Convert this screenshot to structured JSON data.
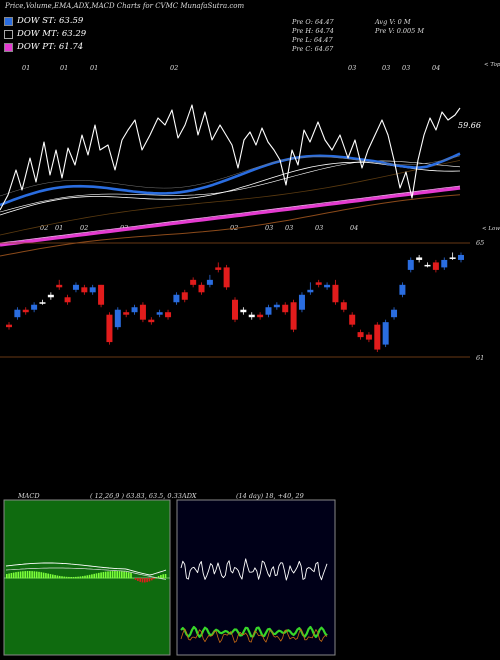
{
  "header": {
    "title": "Price,Volume,EMA,ADX,MACD Charts for CVMC MunafaSutra.com"
  },
  "legend": [
    {
      "label": "DOW ST: 63.59",
      "color": "#2a6de0"
    },
    {
      "label": "DOW MT: 63.29",
      "color": "#000000"
    },
    {
      "label": "DOW PT: 61.74",
      "color": "#e43ad0"
    }
  ],
  "info": {
    "pre_o": "Pre  O: 64.47",
    "pre_h": "Pre  H: 64.74",
    "pre_l": "Pre  L: 64.47",
    "pre_c": "Pre  C: 64.67",
    "avg_v": "Avg V: 0  M",
    "pre_v": "Pre  V: 0.005 M"
  },
  "chart_data": [
    {
      "type": "line",
      "name": "price-ema",
      "price_label": "59.66",
      "top_label": "< Tops",
      "bottom_label": "< Lows",
      "top_date_labels": [
        "01",
        "01",
        "01",
        "02",
        "03",
        "03",
        "03",
        "04"
      ],
      "bottom_date_labels": [
        "02",
        "01",
        "02",
        "02",
        "02",
        "03",
        "03",
        "03",
        "04"
      ],
      "colors": {
        "price": "#ffffff",
        "ema_short": "#2a6de0",
        "ema_mid": "#ffffff",
        "ema_long": "#8b4a1a",
        "ema_pt": "#e43ad0"
      }
    },
    {
      "type": "bar",
      "name": "candles",
      "price_high_label": "65",
      "price_low_label": "61",
      "candles": [
        {
          "o": 61.9,
          "c": 62.0,
          "h": 62.1,
          "l": 61.8,
          "col": "red"
        },
        {
          "o": 62.3,
          "c": 62.6,
          "h": 62.7,
          "l": 62.2,
          "col": "blue"
        },
        {
          "o": 62.6,
          "c": 62.5,
          "h": 62.7,
          "l": 62.4,
          "col": "red"
        },
        {
          "o": 62.6,
          "c": 62.8,
          "h": 62.9,
          "l": 62.5,
          "col": "blue"
        },
        {
          "o": 62.9,
          "c": 62.9,
          "h": 63.0,
          "l": 62.8,
          "col": "white"
        },
        {
          "o": 63.1,
          "c": 63.2,
          "h": 63.3,
          "l": 63.0,
          "col": "white"
        },
        {
          "o": 63.5,
          "c": 63.6,
          "h": 63.8,
          "l": 63.4,
          "col": "red"
        },
        {
          "o": 63.1,
          "c": 62.9,
          "h": 63.2,
          "l": 62.8,
          "col": "red"
        },
        {
          "o": 63.4,
          "c": 63.6,
          "h": 63.7,
          "l": 63.3,
          "col": "blue"
        },
        {
          "o": 63.5,
          "c": 63.3,
          "h": 63.6,
          "l": 63.2,
          "col": "red"
        },
        {
          "o": 63.3,
          "c": 63.5,
          "h": 63.6,
          "l": 63.2,
          "col": "blue"
        },
        {
          "o": 63.6,
          "c": 62.8,
          "h": 63.6,
          "l": 62.7,
          "col": "red"
        },
        {
          "o": 62.4,
          "c": 61.3,
          "h": 62.5,
          "l": 61.2,
          "col": "red"
        },
        {
          "o": 61.9,
          "c": 62.6,
          "h": 62.7,
          "l": 61.8,
          "col": "blue"
        },
        {
          "o": 62.5,
          "c": 62.4,
          "h": 62.6,
          "l": 62.3,
          "col": "red"
        },
        {
          "o": 62.5,
          "c": 62.7,
          "h": 62.8,
          "l": 62.4,
          "col": "blue"
        },
        {
          "o": 62.8,
          "c": 62.2,
          "h": 62.9,
          "l": 62.1,
          "col": "red"
        },
        {
          "o": 62.2,
          "c": 62.1,
          "h": 62.3,
          "l": 62.0,
          "col": "red"
        },
        {
          "o": 62.4,
          "c": 62.5,
          "h": 62.6,
          "l": 62.3,
          "col": "blue"
        },
        {
          "o": 62.5,
          "c": 62.3,
          "h": 62.6,
          "l": 62.2,
          "col": "red"
        },
        {
          "o": 62.9,
          "c": 63.2,
          "h": 63.3,
          "l": 62.8,
          "col": "blue"
        },
        {
          "o": 63.3,
          "c": 63.0,
          "h": 63.4,
          "l": 62.9,
          "col": "red"
        },
        {
          "o": 63.6,
          "c": 63.8,
          "h": 63.9,
          "l": 63.5,
          "col": "red"
        },
        {
          "o": 63.6,
          "c": 63.3,
          "h": 63.7,
          "l": 63.2,
          "col": "red"
        },
        {
          "o": 63.6,
          "c": 63.8,
          "h": 64.0,
          "l": 63.5,
          "col": "blue"
        },
        {
          "o": 64.3,
          "c": 64.2,
          "h": 64.5,
          "l": 64.1,
          "col": "red"
        },
        {
          "o": 64.3,
          "c": 63.5,
          "h": 64.4,
          "l": 63.4,
          "col": "red"
        },
        {
          "o": 63.0,
          "c": 62.2,
          "h": 63.1,
          "l": 62.1,
          "col": "red"
        },
        {
          "o": 62.5,
          "c": 62.6,
          "h": 62.7,
          "l": 62.4,
          "col": "white"
        },
        {
          "o": 62.3,
          "c": 62.4,
          "h": 62.5,
          "l": 62.2,
          "col": "white"
        },
        {
          "o": 62.4,
          "c": 62.3,
          "h": 62.5,
          "l": 62.2,
          "col": "red"
        },
        {
          "o": 62.4,
          "c": 62.7,
          "h": 62.8,
          "l": 62.3,
          "col": "blue"
        },
        {
          "o": 62.7,
          "c": 62.8,
          "h": 62.9,
          "l": 62.6,
          "col": "blue"
        },
        {
          "o": 62.8,
          "c": 62.5,
          "h": 62.9,
          "l": 62.4,
          "col": "red"
        },
        {
          "o": 62.9,
          "c": 61.8,
          "h": 63.0,
          "l": 61.7,
          "col": "red"
        },
        {
          "o": 62.6,
          "c": 63.2,
          "h": 63.3,
          "l": 62.5,
          "col": "blue"
        },
        {
          "o": 63.3,
          "c": 63.4,
          "h": 63.7,
          "l": 63.2,
          "col": "blue"
        },
        {
          "o": 63.7,
          "c": 63.6,
          "h": 63.8,
          "l": 63.5,
          "col": "red"
        },
        {
          "o": 63.5,
          "c": 63.6,
          "h": 63.7,
          "l": 63.4,
          "col": "blue"
        },
        {
          "o": 63.6,
          "c": 62.9,
          "h": 63.8,
          "l": 62.8,
          "col": "red"
        },
        {
          "o": 62.9,
          "c": 62.6,
          "h": 63.0,
          "l": 62.5,
          "col": "red"
        },
        {
          "o": 62.4,
          "c": 62.0,
          "h": 62.5,
          "l": 61.9,
          "col": "red"
        },
        {
          "o": 61.7,
          "c": 61.5,
          "h": 61.8,
          "l": 61.4,
          "col": "red"
        },
        {
          "o": 61.6,
          "c": 61.4,
          "h": 61.7,
          "l": 61.3,
          "col": "red"
        },
        {
          "o": 62.0,
          "c": 61.0,
          "h": 62.1,
          "l": 60.9,
          "col": "red"
        },
        {
          "o": 61.2,
          "c": 62.1,
          "h": 62.2,
          "l": 61.1,
          "col": "blue"
        },
        {
          "o": 62.3,
          "c": 62.6,
          "h": 62.7,
          "l": 62.2,
          "col": "blue"
        },
        {
          "o": 63.2,
          "c": 63.6,
          "h": 63.7,
          "l": 63.1,
          "col": "blue"
        },
        {
          "o": 64.2,
          "c": 64.6,
          "h": 64.7,
          "l": 64.1,
          "col": "blue"
        },
        {
          "o": 64.6,
          "c": 64.7,
          "h": 64.8,
          "l": 64.5,
          "col": "white"
        },
        {
          "o": 64.4,
          "c": 64.4,
          "h": 64.5,
          "l": 64.3,
          "col": "white"
        },
        {
          "o": 64.5,
          "c": 64.2,
          "h": 64.6,
          "l": 64.1,
          "col": "red"
        },
        {
          "o": 64.3,
          "c": 64.6,
          "h": 64.7,
          "l": 64.2,
          "col": "blue"
        },
        {
          "o": 64.7,
          "c": 64.7,
          "h": 64.9,
          "l": 64.6,
          "col": "white"
        },
        {
          "o": 64.6,
          "c": 64.8,
          "h": 64.9,
          "l": 64.5,
          "col": "blue"
        }
      ]
    },
    {
      "type": "line",
      "name": "macd",
      "title": "MACD",
      "params": "( 12,26,9 ) 63.83,  63.5,  0.33"
    },
    {
      "type": "line",
      "name": "adx",
      "title": "ADX",
      "params": "(14  day) 18,  +40,  29"
    }
  ]
}
